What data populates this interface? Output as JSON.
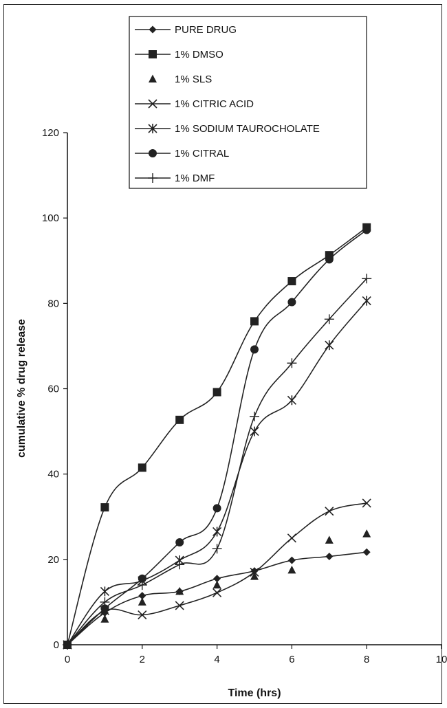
{
  "chart_data": {
    "type": "line",
    "title": "",
    "xlabel": "Time (hrs)",
    "ylabel": "cumulative % drug release",
    "xlim": [
      0,
      10
    ],
    "ylim": [
      0,
      120
    ],
    "xticks": [
      "0",
      "2",
      "4",
      "6",
      "8",
      "10"
    ],
    "yticks": [
      "0",
      "20",
      "40",
      "60",
      "80",
      "100",
      "120"
    ],
    "xtick_values": [
      0,
      2,
      4,
      6,
      8,
      10
    ],
    "ytick_values": [
      0,
      20,
      40,
      60,
      80,
      100,
      120
    ],
    "grid": false,
    "legend_position": "top",
    "color": "#222222",
    "series": [
      {
        "name": "PURE DRUG",
        "marker": "diamond",
        "connected": true,
        "x": [
          0,
          1,
          2,
          3,
          4,
          5,
          6,
          7,
          8
        ],
        "y": [
          0,
          7.5,
          11.5,
          12.5,
          15.5,
          17.3,
          19.8,
          20.7,
          21.7
        ]
      },
      {
        "name": "1% DMSO",
        "marker": "square",
        "connected": true,
        "x": [
          0,
          1,
          2,
          3,
          4,
          5,
          6,
          7,
          8
        ],
        "y": [
          0,
          32.2,
          41.5,
          52.7,
          59.2,
          75.8,
          85.2,
          91.3,
          97.8
        ]
      },
      {
        "name": "1% SLS",
        "marker": "triangle",
        "connected": false,
        "x": [
          0,
          1,
          2,
          3,
          4,
          5,
          6,
          7,
          8
        ],
        "y": [
          0,
          6,
          10,
          12.5,
          14,
          16,
          17.5,
          24.5,
          26
        ]
      },
      {
        "name": "1% CITRIC ACID",
        "marker": "x",
        "connected": true,
        "x": [
          0,
          1,
          2,
          3,
          4,
          5,
          6,
          7,
          8
        ],
        "y": [
          0,
          8,
          7,
          9.2,
          12.2,
          17,
          25,
          31.3,
          33.2
        ]
      },
      {
        "name": "1% SODIUM TAUROCHOLATE",
        "marker": "asterisk",
        "connected": true,
        "x": [
          0,
          1,
          2,
          3,
          4,
          5,
          6,
          7,
          8
        ],
        "y": [
          0,
          12.5,
          15,
          19.8,
          26.5,
          50,
          57.3,
          70.2,
          80.6
        ]
      },
      {
        "name": "1% CITRAL",
        "marker": "circle",
        "connected": true,
        "x": [
          0,
          1,
          2,
          3,
          4,
          5,
          6,
          7,
          8
        ],
        "y": [
          0,
          8.5,
          15.5,
          24,
          32,
          69.2,
          80.3,
          90.3,
          97.2
        ]
      },
      {
        "name": "1% DMF",
        "marker": "plus",
        "connected": true,
        "x": [
          0,
          1,
          2,
          3,
          4,
          5,
          6,
          7,
          8
        ],
        "y": [
          0,
          10,
          14,
          18.8,
          22.5,
          53.5,
          66,
          76.3,
          85.8
        ]
      }
    ]
  }
}
